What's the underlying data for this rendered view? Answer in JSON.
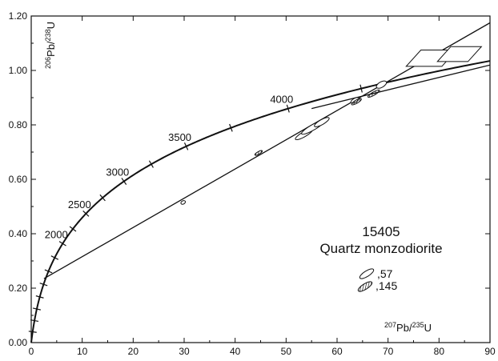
{
  "chart_data": {
    "type": "scatter",
    "title": "",
    "sample_label": "15405",
    "rock_label": "Quartz monzodiorite",
    "xlabel": {
      "base": "",
      "iso_mass": "207",
      "iso_elem": "Pb",
      "sep": "/",
      "iso_mass2": "235",
      "iso_elem2": "U"
    },
    "ylabel": {
      "iso_mass": "206",
      "iso_elem": "Pb",
      "sep": "/",
      "iso_mass2": "238",
      "iso_elem2": "U"
    },
    "xlim": [
      0,
      90
    ],
    "ylim": [
      0,
      1.2
    ],
    "x_ticks": [
      "0",
      "10",
      "20",
      "30",
      "40",
      "50",
      "60",
      "70",
      "80",
      "90"
    ],
    "y_ticks": [
      "0.00",
      "0.20",
      "0.40",
      "0.60",
      "0.80",
      "1.00",
      "1.20"
    ],
    "concordia_age_labels": [
      {
        "age": 2000,
        "text": "2000"
      },
      {
        "age": 2500,
        "text": "2500"
      },
      {
        "age": 3000,
        "text": "3000"
      },
      {
        "age": 3500,
        "text": "3500"
      },
      {
        "age": 4000,
        "text": "4000"
      }
    ],
    "discordia_lines": [
      {
        "x": [
          2.5,
          90
        ],
        "y": [
          0.235,
          1.175
        ]
      },
      {
        "x": [
          55,
          90
        ],
        "y": [
          0.86,
          1.02
        ]
      }
    ],
    "legend": [
      {
        "label": ",57",
        "style": "open"
      },
      {
        "label": ",145",
        "style": "hatched"
      }
    ],
    "ellipses": [
      {
        "series": ",57",
        "x": 29.8,
        "y": 0.515,
        "len": 0.8,
        "w": 0.012
      },
      {
        "series": ",57",
        "x": 53.5,
        "y": 0.765,
        "len": 3.5,
        "w": 0.018
      },
      {
        "series": ",57",
        "x": 55.2,
        "y": 0.79,
        "len": 4.5,
        "w": 0.02
      },
      {
        "series": ",57",
        "x": 57.0,
        "y": 0.81,
        "len": 3.0,
        "w": 0.018
      },
      {
        "series": ",57",
        "x": 63.5,
        "y": 0.89,
        "len": 1.6,
        "w": 0.015
      },
      {
        "series": ",57",
        "x": 68.7,
        "y": 0.948,
        "len": 2.0,
        "w": 0.02
      },
      {
        "series": ",145",
        "x": 44.6,
        "y": 0.697,
        "len": 1.5,
        "w": 0.008
      },
      {
        "series": ",145",
        "x": 63.8,
        "y": 0.885,
        "len": 2.0,
        "w": 0.012
      },
      {
        "series": ",145",
        "x": 67.2,
        "y": 0.915,
        "len": 2.4,
        "w": 0.012
      }
    ],
    "boxes": [
      {
        "series": ",57",
        "x": 78.5,
        "y": 1.045,
        "len": 7.0,
        "w": 0.06
      },
      {
        "series": ",57",
        "x": 84.0,
        "y": 1.06,
        "len": 6.0,
        "w": 0.055
      }
    ],
    "grid": false
  }
}
